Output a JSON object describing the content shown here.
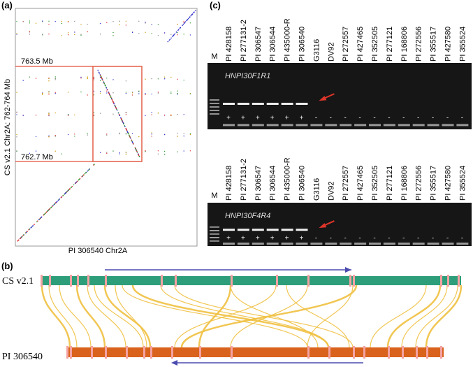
{
  "panels": {
    "a": {
      "label": "(a)",
      "markers": [
        "763.5 Mb",
        "762.7 Mb"
      ],
      "y_axis": "CS v2.1 Chr2A: 762-764 Mb",
      "x_axis": "PI 306540 Chr2A"
    },
    "b": {
      "label": "(b)",
      "tracks": [
        "CS v2.1",
        "PI 306540"
      ]
    },
    "c": {
      "label": "(c)",
      "gels": [
        {
          "name": "HNPI30F1R1",
          "marker": "M",
          "lanes": [
            "PI 428158",
            "PI 277131-2",
            "PI 306547",
            "PI 306544",
            "PI 435000-R",
            "PI 306540",
            "G3116",
            "DV92",
            "PI 272557",
            "PI 427465",
            "PI 352505",
            "PI 277121",
            "PI 168806",
            "PI 272556",
            "PI 355517",
            "PI 427580",
            "PI 355524"
          ],
          "scores": [
            "+",
            "+",
            "+",
            "+",
            "+",
            "+",
            "-",
            "-",
            "-",
            "-",
            "-",
            "-",
            "-",
            "-",
            "-",
            "-",
            "-"
          ]
        },
        {
          "name": "HNPI30F4R4",
          "marker": "M",
          "lanes": [
            "PI 428158",
            "PI 277131-2",
            "PI 306547",
            "PI 306544",
            "PI 435000-R",
            "PI 306540",
            "G3116",
            "DV92",
            "PI 272557",
            "PI 427465",
            "PI 352505",
            "PI 277121",
            "PI 168806",
            "PI 272556",
            "PI 355517",
            "PI 427580",
            "PI 355524"
          ],
          "scores": [
            "+",
            "+",
            "+",
            "+",
            "+",
            "+",
            "-",
            "-",
            "-",
            "-",
            "-",
            "-",
            "-",
            "-",
            "-",
            "-",
            "-"
          ]
        }
      ]
    }
  }
}
